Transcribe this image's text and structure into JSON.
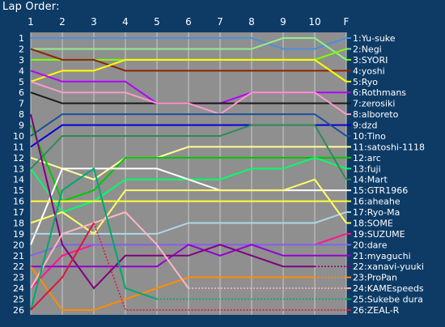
{
  "title": "Lap Order:",
  "chart_data": {
    "type": "line",
    "title": "Lap Order:",
    "x_labels": [
      "1",
      "2",
      "3",
      "4",
      "5",
      "6",
      "7",
      "8",
      "9",
      "10",
      "F"
    ],
    "y_labels": [
      "1",
      "2",
      "3",
      "4",
      "5",
      "6",
      "7",
      "8",
      "9",
      "10",
      "11",
      "12",
      "13",
      "14",
      "15",
      "16",
      "17",
      "18",
      "19",
      "20",
      "21",
      "22",
      "23",
      "24",
      "25",
      "26"
    ],
    "ylim": [
      1,
      26
    ],
    "y_inverted": true,
    "grid": true,
    "series": [
      {
        "name": "1:Yu-suke",
        "color": "#4a90d9",
        "positions": [
          1,
          1,
          1,
          1,
          1,
          1,
          1,
          1,
          2,
          2,
          1
        ],
        "dashed_from": null
      },
      {
        "name": "2:Negi",
        "color": "#90ee90",
        "positions": [
          2,
          2,
          2,
          2,
          2,
          2,
          2,
          2,
          1,
          1,
          3
        ],
        "dashed_from": null
      },
      {
        "name": "3:SYORI",
        "color": "#7fff00",
        "positions": [
          3,
          3,
          3,
          3,
          3,
          3,
          3,
          3,
          3,
          3,
          2
        ],
        "dashed_from": null
      },
      {
        "name": "4:yoshi",
        "color": "#8b2500",
        "positions": [
          2,
          3,
          3,
          4,
          4,
          4,
          4,
          4,
          4,
          4,
          4
        ],
        "dashed_from": null
      },
      {
        "name": "5:Ryo",
        "color": "#ffff00",
        "positions": [
          5,
          4,
          4,
          3,
          3,
          3,
          3,
          3,
          3,
          3,
          5
        ],
        "dashed_from": null
      },
      {
        "name": "6:Rothmans",
        "color": "#b400ff",
        "positions": [
          4,
          5,
          5,
          5,
          7,
          7,
          7,
          6,
          6,
          6,
          6
        ],
        "dashed_from": null
      },
      {
        "name": "7:zerosiki",
        "color": "#1a1a1a",
        "positions": [
          6,
          7,
          7,
          7,
          7,
          7,
          7,
          7,
          7,
          7,
          7
        ],
        "dashed_from": null
      },
      {
        "name": "8:alboreto",
        "color": "#ff99cc",
        "positions": [
          5,
          6,
          6,
          6,
          7,
          7,
          8,
          6,
          6,
          6,
          8
        ],
        "dashed_from": null
      },
      {
        "name": "9:dzd",
        "color": "#0000dd",
        "positions": [
          11,
          9,
          9,
          9,
          9,
          9,
          9,
          9,
          9,
          9,
          9
        ],
        "dashed_from": null
      },
      {
        "name": "10:Tino",
        "color": "#1a4f9c",
        "positions": [
          10,
          8,
          8,
          8,
          8,
          8,
          8,
          8,
          8,
          8,
          10
        ],
        "dashed_from": null
      },
      {
        "name": "11:satoshi-1118",
        "color": "#ffff99",
        "positions": [
          12,
          13,
          14,
          12,
          12,
          11,
          11,
          11,
          11,
          11,
          11
        ],
        "dashed_from": null
      },
      {
        "name": "12:arc",
        "color": "#00c800",
        "positions": [
          9,
          16,
          15,
          12,
          12,
          12,
          12,
          12,
          12,
          12,
          12
        ],
        "dashed_from": null
      },
      {
        "name": "13:fuji",
        "color": "#00ff66",
        "positions": [
          13,
          17,
          16,
          14,
          14,
          14,
          14,
          13,
          13,
          12,
          13
        ],
        "dashed_from": null
      },
      {
        "name": "14:Mart",
        "color": "#2e8b57",
        "positions": [
          13,
          10,
          10,
          10,
          10,
          10,
          10,
          9,
          9,
          9,
          14
        ],
        "dashed_from": null
      },
      {
        "name": "15:GTR1966",
        "color": "#ffffff",
        "positions": [
          20,
          13,
          13,
          13,
          13,
          14,
          15,
          15,
          15,
          15,
          15
        ],
        "dashed_from": null
      },
      {
        "name": "16:aheahe",
        "color": "#ffff33",
        "positions": [
          16,
          16,
          16,
          16,
          16,
          16,
          16,
          16,
          16,
          16,
          16
        ],
        "dashed_from": null
      },
      {
        "name": "17:Ryo-Ma",
        "color": "#add8e6",
        "positions": [
          19,
          19,
          19,
          19,
          19,
          18,
          18,
          18,
          18,
          18,
          17
        ],
        "dashed_from": null
      },
      {
        "name": "18:SOME",
        "color": "#ffff66",
        "positions": [
          18,
          17,
          19,
          15,
          15,
          15,
          15,
          15,
          15,
          14,
          18
        ],
        "dashed_from": null
      },
      {
        "name": "19:SUZUME",
        "color": "#ff1493",
        "positions": [
          24,
          21,
          20,
          20,
          20,
          20,
          20,
          20,
          20,
          20,
          19
        ],
        "dashed_from": null
      },
      {
        "name": "20:dare",
        "color": "#7b68ee",
        "positions": [
          21,
          20,
          20,
          20,
          20,
          20,
          20,
          20,
          20,
          20,
          20
        ],
        "dashed_from": null
      },
      {
        "name": "21:myaguchi",
        "color": "#9400d3",
        "positions": [
          22,
          22,
          22,
          22,
          22,
          20,
          21,
          20,
          21,
          21,
          21
        ],
        "dashed_from": null
      },
      {
        "name": "22:xanavi-yuuki",
        "color": "#800080",
        "positions": [
          8,
          20,
          24,
          21,
          21,
          21,
          20,
          21,
          22,
          22,
          22
        ],
        "dashed_from": 9
      },
      {
        "name": "23:ProPan",
        "color": "#ff8c00",
        "positions": [
          22,
          26,
          26,
          25,
          24,
          23,
          23,
          23,
          23,
          23,
          23
        ],
        "dashed_from": 9
      },
      {
        "name": "24:KAMEspeeds",
        "color": "#ffb6c1",
        "positions": [
          24,
          19,
          18,
          17,
          20,
          24,
          24,
          24,
          24,
          24,
          24
        ],
        "dashed_from": 5
      },
      {
        "name": "25:Sukebe dura",
        "color": "#00a86b",
        "positions": [
          26,
          15,
          13,
          24,
          25,
          25,
          25,
          25,
          25,
          25,
          25
        ],
        "dashed_from": 4
      },
      {
        "name": "26:ZEAL-R",
        "color": "#dc143c",
        "positions": [
          26,
          23,
          18,
          26,
          26,
          26,
          26,
          26,
          26,
          26,
          26
        ],
        "dashed_from": 2
      }
    ]
  }
}
